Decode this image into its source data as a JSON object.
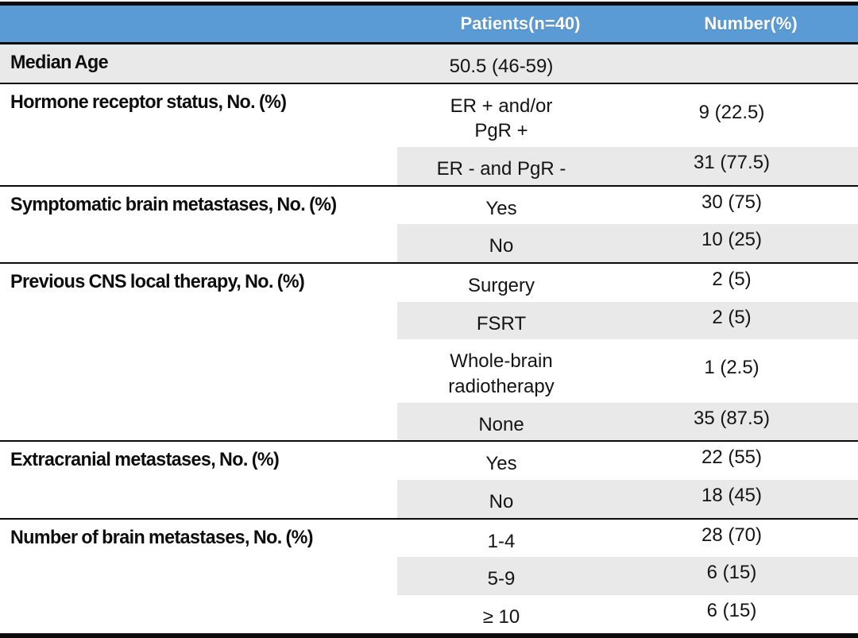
{
  "title": "Patient characteristics table",
  "colors": {
    "header_bg": "#5B9BD5",
    "header_text": "#FFFFFF",
    "stripe_bg": "#EAE9E9",
    "border": "#000000"
  },
  "table": {
    "header": {
      "patients_label": "Patients(n=40)",
      "number_label": "Number(%)"
    },
    "sections": [
      {
        "label": "Median Age",
        "full_row_stripe": true,
        "rows": [
          {
            "value": "50.5 (46-59)",
            "number": "",
            "striped": false
          }
        ]
      },
      {
        "label": "Hormone receptor status, No. (%)",
        "full_row_stripe": false,
        "rows": [
          {
            "value": "ER + and/or\nPgR +",
            "number": "9 (22.5)",
            "striped": false
          },
          {
            "value": "ER - and PgR -",
            "number": "31 (77.5)",
            "striped": true
          }
        ]
      },
      {
        "label": "Symptomatic brain metastases, No. (%)",
        "full_row_stripe": false,
        "rows": [
          {
            "value": "Yes",
            "number": "30 (75)",
            "striped": false
          },
          {
            "value": "No",
            "number": "10 (25)",
            "striped": true
          }
        ]
      },
      {
        "label": "Previous CNS local therapy, No. (%)",
        "full_row_stripe": false,
        "rows": [
          {
            "value": "Surgery",
            "number": "2 (5)",
            "striped": false
          },
          {
            "value": "FSRT",
            "number": "2 (5)",
            "striped": true
          },
          {
            "value": "Whole-brain\nradiotherapy",
            "number": "1 (2.5)",
            "striped": false
          },
          {
            "value": "None",
            "number": "35 (87.5)",
            "striped": true
          }
        ]
      },
      {
        "label": "Extracranial metastases, No. (%)",
        "full_row_stripe": false,
        "rows": [
          {
            "value": "Yes",
            "number": "22 (55)",
            "striped": false
          },
          {
            "value": "No",
            "number": "18 (45)",
            "striped": true
          }
        ]
      },
      {
        "label": "Number of brain metastases, No. (%)",
        "full_row_stripe": false,
        "rows": [
          {
            "value": "1-4",
            "number": "28 (70)",
            "striped": false
          },
          {
            "value": "5-9",
            "number": "6 (15)",
            "striped": true
          },
          {
            "value": "≥ 10",
            "number": "6 (15)",
            "striped": false
          }
        ]
      }
    ]
  }
}
